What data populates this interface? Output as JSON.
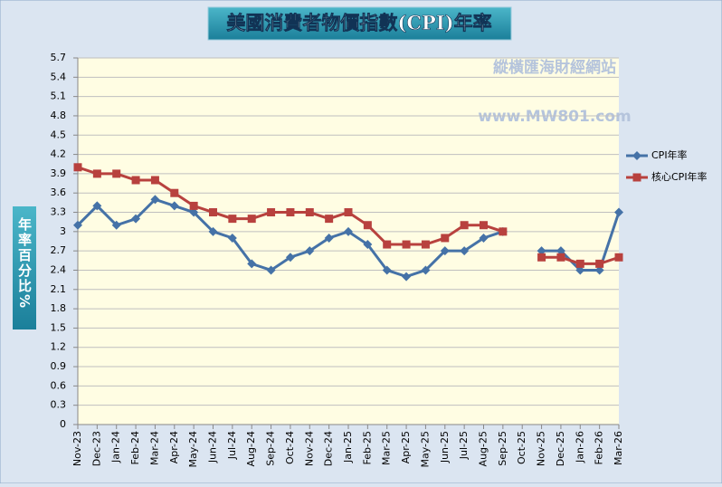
{
  "chart_data": {
    "type": "line",
    "title": "美國消費者物價指數(CPI)年率",
    "y_label": "年率百分比%",
    "annotations": [
      "縱橫匯海財經網站",
      "www.MW801.com"
    ],
    "categories": [
      "Nov-23",
      "Dec-23",
      "Jan-24",
      "Feb-24",
      "Mar-24",
      "Apr-24",
      "May-24",
      "Jun-24",
      "Jul-24",
      "Aug-24",
      "Sep-24",
      "Oct-24",
      "Nov-24",
      "Dec-24",
      "Jan-25",
      "Feb-25",
      "Mar-25",
      "Apr-25",
      "May-25",
      "Jun-25",
      "Jul-25",
      "Aug-25",
      "Sep-25",
      "Oct-25",
      "Nov-25",
      "Dec-25",
      "Jan-26",
      "Feb-26",
      "Mar-26"
    ],
    "series": [
      {
        "name": "CPI年率",
        "color": "#4572a7",
        "marker": "diamond",
        "values": [
          3.1,
          3.4,
          3.1,
          3.2,
          3.5,
          3.4,
          3.3,
          3.0,
          2.9,
          2.5,
          2.4,
          2.6,
          2.7,
          2.9,
          3.0,
          2.8,
          2.4,
          2.3,
          2.4,
          2.7,
          2.7,
          2.9,
          3.0,
          null,
          2.7,
          2.7,
          2.4,
          2.4,
          3.3
        ]
      },
      {
        "name": "核心CPI年率",
        "color": "#b8413e",
        "marker": "square",
        "values": [
          4.0,
          3.9,
          3.9,
          3.8,
          3.8,
          3.6,
          3.4,
          3.3,
          3.2,
          3.2,
          3.3,
          3.3,
          3.3,
          3.2,
          3.3,
          3.1,
          2.8,
          2.8,
          2.8,
          2.9,
          3.1,
          3.1,
          3.0,
          null,
          2.6,
          2.6,
          2.5,
          2.5,
          2.6
        ]
      }
    ],
    "ylim": [
      0,
      5.7
    ],
    "yticks": [
      0,
      0.3,
      0.6,
      0.9,
      1.2,
      1.5,
      1.8,
      2.1,
      2.4,
      2.7,
      3,
      3.3,
      3.6,
      3.9,
      4.2,
      4.5,
      4.8,
      5.1,
      5.4,
      5.7
    ],
    "grid": true,
    "legend": "right"
  }
}
